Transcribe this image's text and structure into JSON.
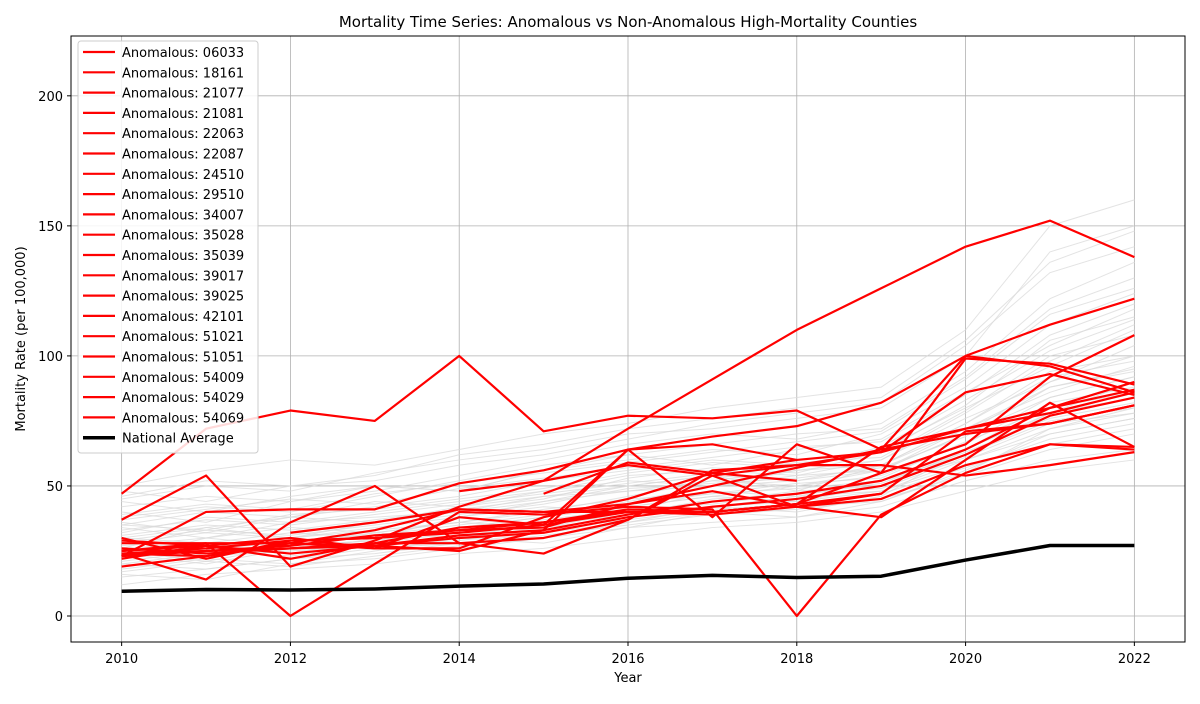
{
  "chart_data": {
    "type": "line",
    "title": "Mortality Time Series: Anomalous vs Non-Anomalous High-Mortality Counties",
    "xlabel": "Year",
    "ylabel": "Mortality Rate (per 100,000)",
    "xlim": [
      2009.4,
      2022.6
    ],
    "ylim": [
      -10,
      223
    ],
    "x_ticks": [
      2010,
      2012,
      2014,
      2016,
      2018,
      2020,
      2022
    ],
    "y_ticks": [
      0,
      50,
      100,
      150,
      200
    ],
    "grid": true,
    "legend_position": "top-left",
    "colors": {
      "anomalous": "#ff0000",
      "national": "#000000",
      "background_series": "#d9d9d9"
    },
    "anomalous_series": [
      {
        "name": "Anomalous: 06033",
        "x": [
          2010,
          2011,
          2012,
          2013,
          2014,
          2015,
          2016,
          2017,
          2018,
          2019,
          2020,
          2021,
          2022
        ],
        "y": [
          24,
          23,
          28,
          27,
          25,
          33,
          64,
          38,
          66,
          55,
          99,
          97,
          89
        ]
      },
      {
        "name": "Anomalous: 18161",
        "x": [
          2010,
          2011,
          2012,
          2013,
          2014,
          2015,
          2016,
          2017,
          2018,
          2019,
          2020,
          2021,
          2022
        ],
        "y": [
          24,
          14,
          36,
          50,
          28,
          24,
          37,
          56,
          58,
          63,
          86,
          93,
          85
        ]
      },
      {
        "name": "Anomalous: 21077",
        "x": [
          2010,
          2011,
          2012,
          2013,
          2014,
          2015,
          2016,
          2017,
          2018,
          2019,
          2020,
          2021,
          2022
        ],
        "y": [
          47,
          72,
          79,
          75,
          100,
          71,
          77,
          76,
          79,
          64,
          100,
          96,
          86
        ]
      },
      {
        "name": "Anomalous: 21081",
        "x": [
          2010,
          2011,
          2012,
          2013,
          2014,
          2015,
          2016,
          2017,
          2018,
          2019,
          2020,
          2021,
          2022
        ],
        "y": [
          30,
          22,
          29,
          30,
          32,
          35,
          40,
          39,
          42,
          47,
          71,
          74,
          81
        ]
      },
      {
        "name": "Anomalous: 22063",
        "x": [
          2010,
          2011,
          2012,
          2013,
          2014,
          2015,
          2016,
          2017,
          2018
        ],
        "y": [
          28,
          28,
          28,
          26,
          38,
          35,
          64,
          66,
          60
        ]
      },
      {
        "name": "Anomalous: 22087",
        "x": [
          2010,
          2011,
          2012,
          2013,
          2014,
          2015,
          2016,
          2017,
          2018,
          2019,
          2020,
          2021,
          2022
        ],
        "y": [
          37,
          54,
          19,
          29,
          42,
          52,
          72,
          91,
          110,
          126,
          142,
          152,
          138
        ]
      },
      {
        "name": "Anomalous: 24510",
        "x": [
          2010,
          2011,
          2012,
          2013,
          2014,
          2015,
          2016,
          2017,
          2018,
          2019,
          2020,
          2021,
          2022
        ],
        "y": [
          23,
          40,
          41,
          41,
          51,
          56,
          64,
          69,
          73,
          82,
          100,
          112,
          122
        ]
      },
      {
        "name": "Anomalous: 29510",
        "x": [
          2010,
          2011,
          2012,
          2013,
          2014,
          2015,
          2016,
          2017,
          2018,
          2019,
          2020,
          2021,
          2022
        ],
        "y": [
          25,
          28,
          0,
          20,
          40,
          39,
          42,
          41,
          0,
          39,
          55,
          66,
          65
        ]
      },
      {
        "name": "Anomalous: 34007",
        "x": [
          2010,
          2011,
          2012,
          2013,
          2014,
          2015,
          2016,
          2017,
          2018,
          2019,
          2020,
          2021,
          2022
        ],
        "y": [
          25,
          27,
          22,
          28,
          28,
          30,
          37,
          54,
          58,
          58,
          54,
          58,
          63
        ]
      },
      {
        "name": "Anomalous: 35028",
        "x": [
          2015,
          2016,
          2017,
          2018
        ],
        "y": [
          47,
          59,
          55,
          52
        ]
      },
      {
        "name": "Anomalous: 35039",
        "x": [
          2014,
          2015,
          2016,
          2017,
          2018,
          2019,
          2020,
          2021,
          2022
        ],
        "y": [
          48,
          52,
          58,
          54,
          42,
          38,
          60,
          82,
          65
        ]
      },
      {
        "name": "Anomalous: 39017",
        "x": [
          2010,
          2011,
          2012,
          2013,
          2014,
          2015,
          2016,
          2017,
          2018,
          2019,
          2020,
          2021,
          2022
        ],
        "y": [
          24,
          26,
          29,
          30,
          33,
          36,
          41,
          40,
          43,
          65,
          72,
          80,
          87
        ]
      },
      {
        "name": "Anomalous: 39025",
        "x": [
          2010,
          2011,
          2012,
          2013,
          2014,
          2015,
          2016,
          2017,
          2018,
          2019
        ],
        "y": [
          19,
          23,
          28,
          33,
          41,
          40,
          40,
          40,
          43,
          47
        ]
      },
      {
        "name": "Anomalous: 42101",
        "x": [
          2010,
          2011,
          2012,
          2013,
          2014,
          2015,
          2016,
          2017,
          2018,
          2019,
          2020,
          2021,
          2022
        ],
        "y": [
          24,
          25,
          27,
          31,
          33,
          34,
          43,
          50,
          57,
          64,
          70,
          74,
          81
        ]
      },
      {
        "name": "Anomalous: 51021",
        "x": [
          2012,
          2013,
          2014,
          2015,
          2016,
          2017,
          2018,
          2019,
          2020,
          2021,
          2022
        ],
        "y": [
          32,
          36,
          41,
          40,
          43,
          48,
          42,
          45,
          58,
          66,
          64
        ]
      },
      {
        "name": "Anomalous: 51051",
        "x": [
          2010,
          2011,
          2012,
          2013,
          2014,
          2015,
          2016,
          2017,
          2018,
          2019,
          2020,
          2021,
          2022
        ],
        "y": [
          29,
          27,
          30,
          26,
          26,
          38,
          45,
          55,
          60,
          63,
          72,
          78,
          86
        ]
      },
      {
        "name": "Anomalous: 54009",
        "x": [
          2010,
          2011,
          2012,
          2013,
          2014,
          2015,
          2016,
          2017,
          2018,
          2019,
          2020,
          2021,
          2022
        ],
        "y": [
          23,
          25,
          26,
          28,
          34,
          36,
          40,
          40,
          43,
          55,
          66,
          92,
          108
        ]
      },
      {
        "name": "Anomalous: 54029",
        "x": [
          2010,
          2011,
          2012,
          2013,
          2014,
          2015,
          2016,
          2017,
          2018,
          2019,
          2020,
          2021,
          2022
        ],
        "y": [
          26,
          24,
          26,
          27,
          30,
          32,
          38,
          42,
          45,
          50,
          62,
          77,
          84
        ]
      },
      {
        "name": "Anomalous: 54069",
        "x": [
          2010,
          2011,
          2012,
          2013,
          2014,
          2015,
          2016,
          2017,
          2018,
          2019,
          2020,
          2021,
          2022
        ],
        "y": [
          22,
          27,
          24,
          27,
          31,
          33,
          39,
          44,
          47,
          52,
          64,
          80,
          90
        ]
      }
    ],
    "national_average": {
      "name": "National Average",
      "x": [
        2010,
        2011,
        2012,
        2013,
        2014,
        2015,
        2016,
        2017,
        2018,
        2019,
        2020,
        2021,
        2022
      ],
      "y": [
        9.5,
        10.2,
        10.0,
        10.4,
        11.5,
        12.3,
        14.5,
        15.6,
        14.8,
        15.3,
        21.5,
        27.1,
        27.1
      ]
    },
    "background_series": [
      [
        18,
        22,
        20,
        25,
        30,
        28,
        34,
        40,
        38,
        44,
        55,
        72,
        80
      ],
      [
        28,
        26,
        30,
        33,
        36,
        41,
        45,
        47,
        49,
        52,
        62,
        78,
        90
      ],
      [
        35,
        40,
        38,
        42,
        46,
        52,
        56,
        60,
        58,
        64,
        80,
        96,
        110
      ],
      [
        22,
        30,
        27,
        29,
        34,
        38,
        44,
        50,
        52,
        56,
        70,
        90,
        104
      ],
      [
        15,
        18,
        22,
        24,
        28,
        30,
        36,
        42,
        44,
        48,
        58,
        66,
        72
      ],
      [
        40,
        36,
        44,
        50,
        48,
        56,
        62,
        66,
        70,
        72,
        92,
        118,
        130
      ],
      [
        26,
        34,
        30,
        36,
        40,
        44,
        50,
        54,
        48,
        58,
        74,
        94,
        100
      ],
      [
        20,
        24,
        26,
        28,
        32,
        36,
        42,
        46,
        50,
        54,
        66,
        84,
        92
      ],
      [
        45,
        50,
        48,
        55,
        60,
        64,
        70,
        72,
        76,
        80,
        100,
        140,
        150
      ],
      [
        30,
        28,
        32,
        30,
        38,
        42,
        40,
        48,
        46,
        52,
        60,
        70,
        76
      ],
      [
        24,
        20,
        26,
        32,
        30,
        34,
        38,
        42,
        40,
        46,
        64,
        82,
        88
      ],
      [
        38,
        42,
        40,
        46,
        52,
        58,
        62,
        58,
        64,
        68,
        86,
        104,
        118
      ],
      [
        16,
        14,
        20,
        22,
        26,
        30,
        34,
        36,
        38,
        42,
        52,
        60,
        64
      ],
      [
        32,
        38,
        36,
        40,
        44,
        48,
        54,
        56,
        54,
        60,
        78,
        98,
        112
      ],
      [
        27,
        30,
        34,
        32,
        36,
        40,
        46,
        52,
        56,
        58,
        72,
        86,
        96
      ],
      [
        50,
        56,
        60,
        58,
        64,
        70,
        74,
        80,
        84,
        88,
        110,
        150,
        160
      ],
      [
        21,
        25,
        23,
        27,
        31,
        35,
        39,
        45,
        47,
        51,
        63,
        76,
        82
      ],
      [
        36,
        32,
        38,
        44,
        42,
        48,
        52,
        50,
        56,
        60,
        76,
        90,
        100
      ],
      [
        29,
        33,
        31,
        35,
        39,
        43,
        49,
        51,
        53,
        57,
        69,
        88,
        95
      ],
      [
        42,
        46,
        44,
        48,
        54,
        60,
        66,
        70,
        68,
        74,
        94,
        122,
        136
      ],
      [
        19,
        23,
        25,
        27,
        29,
        33,
        37,
        41,
        43,
        47,
        57,
        68,
        74
      ],
      [
        33,
        37,
        35,
        39,
        43,
        47,
        51,
        55,
        59,
        61,
        79,
        100,
        108
      ],
      [
        25,
        21,
        27,
        29,
        33,
        37,
        41,
        43,
        47,
        49,
        61,
        74,
        78
      ],
      [
        31,
        35,
        33,
        37,
        41,
        45,
        53,
        57,
        55,
        63,
        81,
        106,
        115
      ],
      [
        23,
        27,
        29,
        31,
        35,
        39,
        43,
        47,
        51,
        53,
        67,
        80,
        86
      ],
      [
        34,
        30,
        36,
        38,
        40,
        46,
        48,
        52,
        50,
        56,
        70,
        84,
        92
      ],
      [
        12,
        16,
        18,
        20,
        24,
        26,
        30,
        34,
        36,
        40,
        48,
        56,
        60
      ],
      [
        48,
        44,
        50,
        52,
        58,
        62,
        68,
        74,
        78,
        82,
        104,
        132,
        142
      ],
      [
        26,
        28,
        24,
        30,
        34,
        38,
        42,
        46,
        44,
        50,
        64,
        78,
        84
      ],
      [
        37,
        41,
        45,
        43,
        49,
        53,
        57,
        61,
        65,
        67,
        85,
        108,
        120
      ],
      [
        20,
        18,
        22,
        26,
        28,
        32,
        36,
        40,
        42,
        44,
        56,
        70,
        76
      ],
      [
        30,
        34,
        38,
        36,
        42,
        46,
        50,
        54,
        52,
        58,
        74,
        92,
        98
      ],
      [
        44,
        40,
        46,
        50,
        48,
        56,
        60,
        64,
        62,
        70,
        88,
        112,
        124
      ],
      [
        24,
        26,
        28,
        32,
        36,
        34,
        40,
        44,
        48,
        50,
        62,
        75,
        80
      ],
      [
        17,
        21,
        19,
        23,
        27,
        31,
        35,
        39,
        41,
        45,
        54,
        64,
        70
      ],
      [
        39,
        43,
        41,
        47,
        51,
        55,
        59,
        63,
        67,
        71,
        91,
        116,
        126
      ],
      [
        28,
        32,
        30,
        34,
        38,
        44,
        48,
        50,
        54,
        56,
        72,
        88,
        94
      ],
      [
        22,
        26,
        24,
        28,
        30,
        36,
        40,
        42,
        46,
        48,
        60,
        72,
        78
      ],
      [
        35,
        33,
        39,
        41,
        45,
        49,
        55,
        59,
        57,
        65,
        83,
        102,
        114
      ],
      [
        46,
        52,
        50,
        54,
        62,
        66,
        72,
        76,
        80,
        84,
        106,
        136,
        148
      ]
    ]
  }
}
